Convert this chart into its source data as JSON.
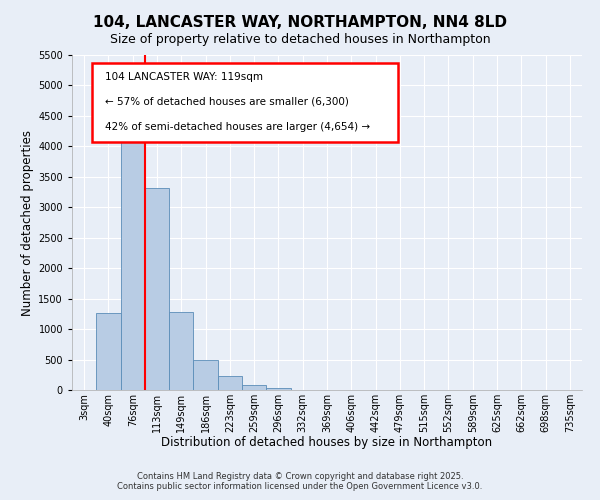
{
  "title": "104, LANCASTER WAY, NORTHAMPTON, NN4 8LD",
  "subtitle": "Size of property relative to detached houses in Northampton",
  "xlabel": "Distribution of detached houses by size in Northampton",
  "ylabel": "Number of detached properties",
  "bar_labels": [
    "3sqm",
    "40sqm",
    "76sqm",
    "113sqm",
    "149sqm",
    "186sqm",
    "223sqm",
    "259sqm",
    "296sqm",
    "332sqm",
    "369sqm",
    "406sqm",
    "442sqm",
    "479sqm",
    "515sqm",
    "552sqm",
    "589sqm",
    "625sqm",
    "662sqm",
    "698sqm",
    "735sqm"
  ],
  "bar_values": [
    0,
    1270,
    4370,
    3320,
    1280,
    500,
    230,
    80,
    30,
    5,
    2,
    1,
    0,
    0,
    0,
    0,
    0,
    0,
    0,
    0,
    0
  ],
  "bar_color": "#b8cce4",
  "bar_edge_color": "#5b8db8",
  "vline_x": 3.0,
  "vline_color": "red",
  "ylim": [
    0,
    5500
  ],
  "yticks": [
    0,
    500,
    1000,
    1500,
    2000,
    2500,
    3000,
    3500,
    4000,
    4500,
    5000,
    5500
  ],
  "footer_line1": "Contains HM Land Registry data © Crown copyright and database right 2025.",
  "footer_line2": "Contains public sector information licensed under the Open Government Licence v3.0.",
  "bg_color": "#e8eef7",
  "plot_bg_color": "#e8eef7",
  "grid_color": "#ffffff",
  "title_fontsize": 11,
  "subtitle_fontsize": 9,
  "axis_label_fontsize": 8.5,
  "tick_fontsize": 7,
  "footer_fontsize": 6,
  "ann_text_line1": "104 LANCASTER WAY: 119sqm",
  "ann_text_line2": "← 57% of detached houses are smaller (6,300)",
  "ann_text_line3": "42% of semi-detached houses are larger (4,654) →"
}
